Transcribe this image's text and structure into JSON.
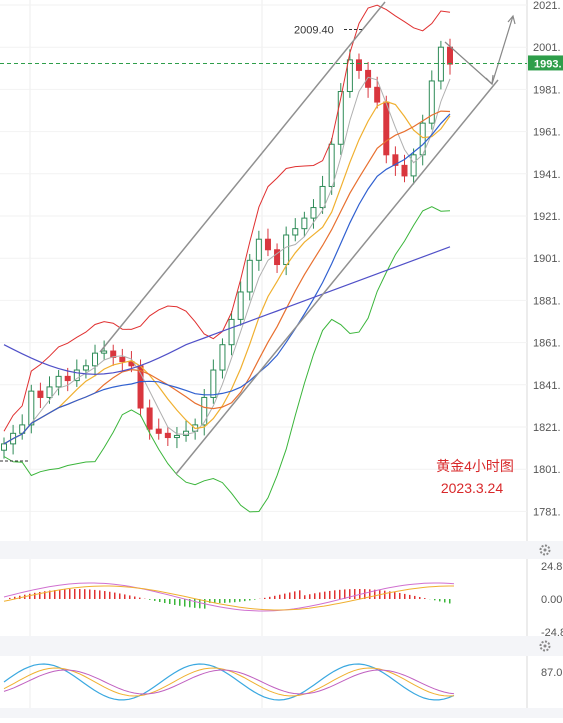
{
  "chart_data": [
    {
      "type": "candlestick",
      "y_axis_ticks": [
        "2021.",
        "2001.",
        "1981.",
        "1961.",
        "1941.",
        "1921.",
        "1901.",
        "1881.",
        "1861.",
        "1841.",
        "1821.",
        "1801.",
        "1781."
      ],
      "ylim": [
        1776,
        2025
      ],
      "current_price_label": "1993.",
      "current_price": 1993.3,
      "high_label": "2009.40",
      "high_value": 2009.4,
      "annotation_title": "黄金4小时图",
      "annotation_date": "2023.3.24",
      "colors": {
        "up": "#2e8b57",
        "down": "#d9363e",
        "boll_upper": "#e03030",
        "boll_lower": "#3ab53a",
        "ma_fast": "#f0b030",
        "ma_mid": "#e87030",
        "ma_slow": "#3060d0",
        "ma_long": "#5050c8",
        "ma_gray": "#b0b0b0",
        "price_line": "#2e9e4a",
        "channel": "#909090"
      },
      "series": [
        {
          "values": [
            1813,
            1818,
            1822,
            1838,
            1835,
            1840,
            1845,
            1843,
            1848,
            1850,
            1856,
            1857,
            1854,
            1852,
            1850,
            1830,
            1820,
            1818,
            1816,
            1817,
            1819,
            1822,
            1835,
            1848,
            1860,
            1872,
            1885,
            1900,
            1910,
            1905,
            1898,
            1912,
            1915,
            1920,
            1925,
            1935,
            1955,
            1980,
            1995,
            1990,
            1982,
            1975,
            1950,
            1945,
            1940,
            1950,
            1965,
            1985,
            2001,
            1993
          ]
        }
      ]
    },
    {
      "type": "macd",
      "y_axis_ticks": [
        "24.8",
        "0.00",
        "-24.8"
      ],
      "ylim": [
        -30,
        30
      ],
      "colors": {
        "pos": "#e03030",
        "neg": "#3ab53a",
        "dif": "#d070d0",
        "dea": "#f0b030"
      }
    },
    {
      "type": "kdj",
      "y_axis_ticks": [
        "87.0"
      ],
      "colors": {
        "k": "#3aa8e0",
        "d": "#f0b030",
        "j": "#c060c0"
      }
    }
  ]
}
